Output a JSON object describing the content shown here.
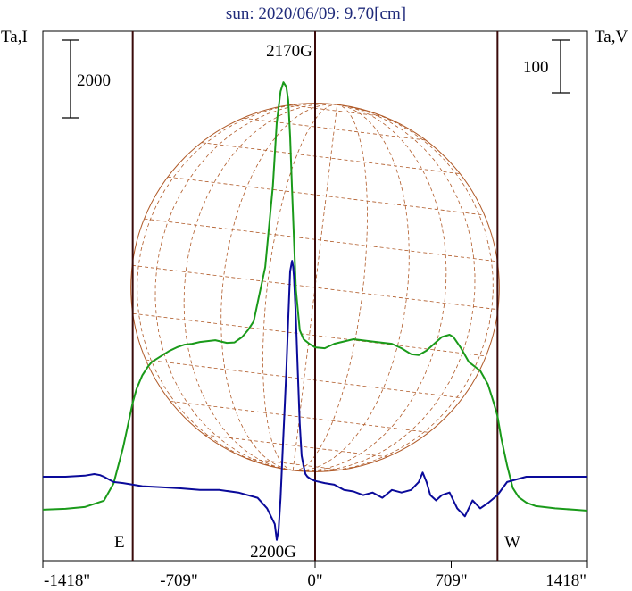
{
  "chart_data": {
    "type": "line",
    "title": "sun: 2020/06/09: 9.70[cm]",
    "left_axis_label": "Ta,I",
    "right_axis_label": "Ta,V",
    "left_scale_bar_label": "2000",
    "right_scale_bar_label": "100",
    "x_ticks": [
      -1418,
      -709,
      0,
      709,
      1418
    ],
    "x_tick_labels": [
      "-1418\"",
      "-709\"",
      "0\"",
      "709\"",
      "1418\""
    ],
    "xlim": [
      -1418,
      1418
    ],
    "limb_markers": [
      -950,
      0,
      950
    ],
    "limb_labels": {
      "east": "E",
      "west": "W"
    },
    "peak_labels": {
      "max": "2170G",
      "min": "2200G"
    },
    "colors": {
      "intensity": "#1a9a1a",
      "polarization": "#0a0a9a",
      "disk": "#b05a28",
      "frame": "#000000",
      "limb_lines": "#3a0a0a",
      "title": "#1f2a7a"
    },
    "series": [
      {
        "x": [
          -1418,
          -1300,
          -1200,
          -1100,
          -1050,
          -1000,
          -970,
          -950,
          -930,
          -900,
          -870,
          -850,
          -820,
          -790,
          -760,
          -720,
          -680,
          -640,
          -600,
          -560,
          -520,
          -500,
          -460,
          -420,
          -380,
          -350,
          -320,
          -300,
          -260,
          -220,
          -200,
          -180,
          -165,
          -150,
          -140,
          -130,
          -120,
          -100,
          -80,
          -60,
          -30,
          0,
          50,
          100,
          200,
          300,
          400,
          450,
          500,
          540,
          580,
          620,
          660,
          700,
          720,
          760,
          800,
          860,
          900,
          930,
          950,
          970,
          1000,
          1030,
          1060,
          1100,
          1150,
          1250,
          1350,
          1418
        ],
        "y": [
          120,
          140,
          180,
          320,
          700,
          1500,
          2100,
          2500,
          2800,
          3100,
          3300,
          3400,
          3480,
          3560,
          3640,
          3720,
          3780,
          3800,
          3840,
          3860,
          3880,
          3860,
          3820,
          3830,
          3950,
          4100,
          4300,
          4700,
          5500,
          7300,
          8700,
          9400,
          9600,
          9500,
          9200,
          8400,
          7200,
          5000,
          4100,
          3900,
          3800,
          3720,
          3700,
          3800,
          3900,
          3850,
          3800,
          3700,
          3570,
          3550,
          3650,
          3800,
          3950,
          4000,
          3950,
          3700,
          3400,
          3200,
          2900,
          2500,
          2200,
          1700,
          1100,
          600,
          400,
          280,
          200,
          150,
          120,
          100
        ]
      },
      {
        "x": [
          -1418,
          -1300,
          -1200,
          -1150,
          -1120,
          -1100,
          -1050,
          -1000,
          -950,
          -900,
          -800,
          -700,
          -600,
          -500,
          -400,
          -300,
          -250,
          -210,
          -200,
          -190,
          -180,
          -170,
          -160,
          -150,
          -140,
          -130,
          -120,
          -115,
          -110,
          -100,
          -90,
          -80,
          -70,
          -60,
          -50,
          -40,
          -20,
          0,
          50,
          100,
          150,
          200,
          250,
          300,
          350,
          400,
          450,
          500,
          540,
          560,
          580,
          600,
          630,
          660,
          700,
          740,
          780,
          820,
          860,
          900,
          950,
          1000,
          1100,
          1200,
          1300,
          1418
        ],
        "y": [
          0,
          0,
          2,
          5,
          3,
          0,
          -10,
          -12,
          -15,
          -18,
          -20,
          -22,
          -25,
          -25,
          -30,
          -40,
          -60,
          -90,
          -120,
          -100,
          -40,
          40,
          120,
          200,
          300,
          390,
          410,
          400,
          380,
          300,
          200,
          100,
          40,
          20,
          5,
          0,
          -5,
          -8,
          -12,
          -15,
          -25,
          -28,
          -35,
          -30,
          -40,
          -25,
          -30,
          -25,
          -10,
          8,
          -10,
          -35,
          -45,
          -35,
          -30,
          -60,
          -75,
          -45,
          -60,
          -50,
          -35,
          -10,
          0,
          0,
          0,
          0
        ]
      }
    ]
  }
}
